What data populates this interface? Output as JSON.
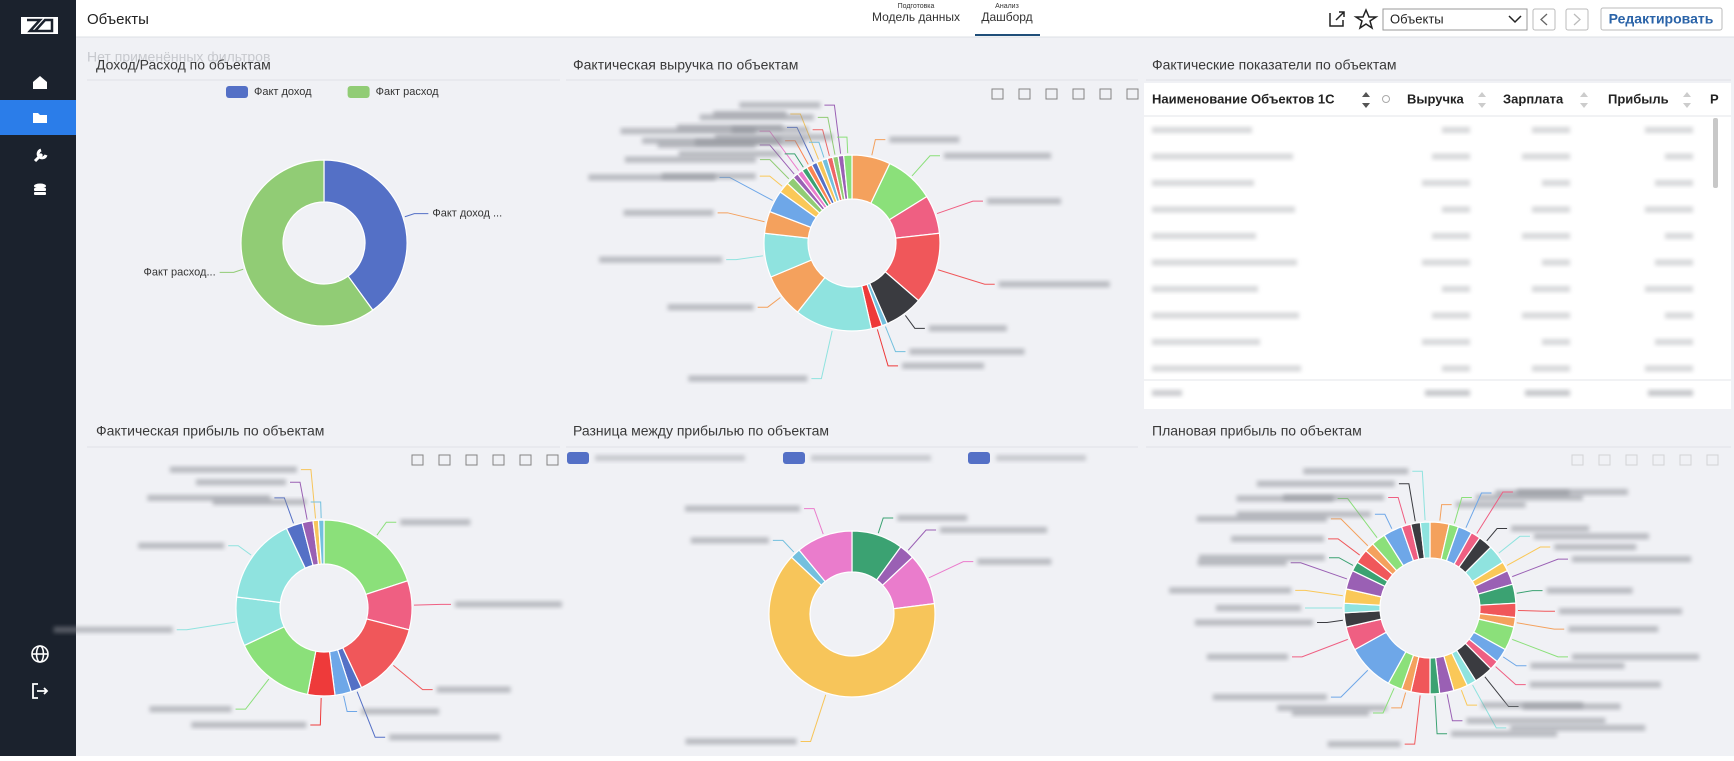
{
  "header": {
    "title": "Объекты",
    "tabs": [
      {
        "caption": "Подготовка",
        "label": "Модель данных"
      },
      {
        "caption": "Анализ",
        "label": "Дашборд"
      }
    ],
    "select": "Объекты",
    "edit_button": "Редактировать"
  },
  "widgets": [
    {
      "title": "Доход/Расход по объектам",
      "overlay": "Нет применённых фильтров",
      "chart": {
        "type": "pie",
        "categories": [
          "Факт доход",
          "Факт расход"
        ],
        "slice_labels": [
          "Факт доход ...",
          "Факт расход..."
        ],
        "values": [
          40,
          60
        ],
        "colors": [
          "#5470c6",
          "#91cc75"
        ]
      }
    },
    {
      "title": "Фактическая выручка по объектам",
      "chart": {
        "type": "pie",
        "values": [
          7,
          9,
          7,
          13,
          7,
          1,
          2,
          14,
          8,
          8,
          4,
          4,
          2,
          1.5,
          1,
          1,
          1,
          1,
          1,
          1,
          1,
          1,
          1,
          1,
          1.5
        ],
        "palette": [
          "#f4a15d",
          "#8be07a",
          "#ef5f82",
          "#f0575a",
          "#3a3b40",
          "#73c0de",
          "#ee3a3a",
          "#8fe3df",
          "#f4a15d",
          "#8fe3df",
          "#f4a15d",
          "#6ea7e8",
          "#fac858",
          "#91cc75",
          "#9a60b4",
          "#ea7ccc",
          "#3ba272",
          "#fc8452",
          "#5470c6",
          "#f7c55a",
          "#73c0de",
          "#ee6666",
          "#91cc75",
          "#9a60b4",
          "#8be07a"
        ]
      }
    },
    {
      "title": "Фактические показатели по объектам",
      "table": {
        "columns": [
          "Наименование Объектов 1С",
          "Выручка",
          "Зарплата",
          "Прибыль",
          "Р"
        ]
      }
    },
    {
      "title": "Фактическая прибыль по объектам",
      "chart": {
        "type": "pie",
        "values": [
          20,
          9,
          14,
          2,
          3,
          5,
          15,
          9,
          16,
          3,
          2,
          1,
          1
        ],
        "palette": [
          "#8be07a",
          "#ef5f82",
          "#f0575a",
          "#5470c6",
          "#6ea7e8",
          "#ee3a3a",
          "#8be07a",
          "#8fe3df",
          "#8fe3df",
          "#5470c6",
          "#9a60b4",
          "#f7c55a",
          "#73c0de"
        ]
      }
    },
    {
      "title": "Разница между прибылью по объектам",
      "chart": {
        "type": "pie",
        "values": [
          10,
          3,
          10,
          64,
          2,
          11
        ],
        "palette": [
          "#3ba272",
          "#9a60b4",
          "#ea7ccc",
          "#f7c55a",
          "#73c0de",
          "#ea7ccc"
        ]
      }
    },
    {
      "title": "Плановая прибыль по объектам",
      "chart": {
        "type": "pie",
        "values": [
          4,
          2,
          3,
          2,
          3,
          4,
          2,
          3,
          4,
          3,
          2,
          5,
          3,
          2,
          4,
          2,
          3,
          3,
          2,
          4,
          2,
          3,
          10,
          5,
          3,
          2,
          3,
          4,
          2,
          3,
          2,
          3,
          4,
          2,
          2,
          2
        ],
        "palette": [
          "#f4a15d",
          "#8be07a",
          "#6ea7e8",
          "#ef5f82",
          "#3a3b40",
          "#8fe3df",
          "#fac858",
          "#9a60b4",
          "#3ba272",
          "#f0575a"
        ]
      }
    }
  ]
}
